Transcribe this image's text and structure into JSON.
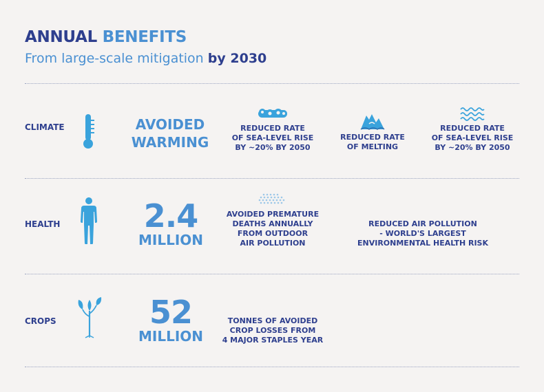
{
  "header": {
    "title_part1": "ANNUAL",
    "title_part2": "BENEFITS",
    "subtitle_part1": "From large-scale mitigation",
    "subtitle_part2": "by 2030"
  },
  "rows": {
    "climate": {
      "label": "CLIMATE",
      "icon": "thermometer-icon",
      "headline": [
        "AVOIDED",
        "WARMING"
      ],
      "items": [
        {
          "icon": "sea-level-bubbles-icon",
          "lines": [
            "REDUCED RATE",
            "OF SEA-LEVEL RISE",
            "BY ~20% BY 2050"
          ]
        },
        {
          "icon": "melting-ice-icon",
          "lines": [
            "REDUCED RATE",
            "OF MELTING"
          ]
        },
        {
          "icon": "waves-icon",
          "lines": [
            "REDUCED RATE",
            "OF SEA-LEVEL RISE",
            "BY ~20% BY 2050"
          ]
        }
      ]
    },
    "health": {
      "label": "HEALTH",
      "icon": "human-figure-icon",
      "value": "2.4",
      "unit": "MILLION",
      "items": [
        {
          "icon": "air-pollution-dots-icon",
          "lines": [
            "AVOIDED PREMATURE",
            "DEATHS ANNUALLY",
            "FROM OUTDOOR",
            "AIR POLLUTION"
          ]
        },
        {
          "lines": [
            "REDUCED AIR POLLUTION",
            "- WORLD'S LARGEST",
            "ENVIRONMENTAL HEALTH RISK"
          ]
        }
      ]
    },
    "crops": {
      "label": "CROPS",
      "icon": "sprout-icon",
      "value": "52",
      "unit": "MILLION",
      "items": [
        {
          "lines": [
            "TONNES OF AVOIDED",
            "CROP LOSSES FROM",
            "4 MAJOR STAPLES YEAR"
          ]
        }
      ]
    }
  },
  "colors": {
    "navy": "#2e3f8e",
    "blue": "#4a90d2",
    "icon_blue": "#3aa3dc",
    "background": "#f5f3f2"
  }
}
